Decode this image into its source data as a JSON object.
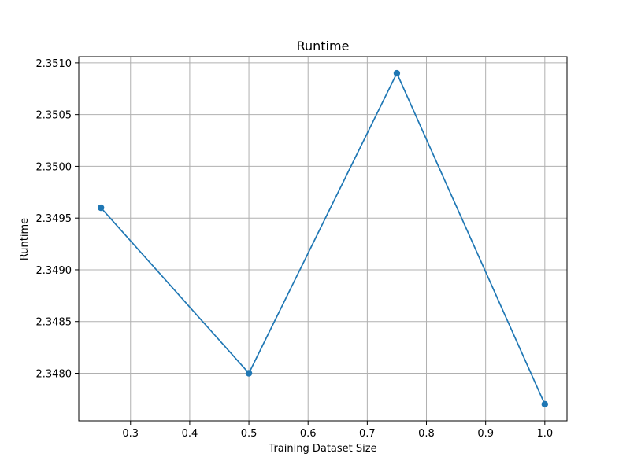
{
  "chart_data": {
    "type": "line",
    "title": "Runtime",
    "xlabel": "Training Dataset Size",
    "ylabel": "Runtime",
    "xlim": [
      0.2125,
      1.0375
    ],
    "ylim": [
      2.34754,
      2.35106
    ],
    "xticks": [
      0.3,
      0.4,
      0.5,
      0.6,
      0.7,
      0.8,
      0.9,
      1.0
    ],
    "xtick_labels": [
      "0.3",
      "0.4",
      "0.5",
      "0.6",
      "0.7",
      "0.8",
      "0.9",
      "1.0"
    ],
    "yticks": [
      2.348,
      2.3485,
      2.349,
      2.3495,
      2.35,
      2.3505,
      2.351
    ],
    "ytick_labels": [
      "2.3480",
      "2.3485",
      "2.3490",
      "2.3495",
      "2.3500",
      "2.3505",
      "2.3510"
    ],
    "grid": true,
    "series": [
      {
        "color": "#1f77b4",
        "marker": "circle",
        "x": [
          0.25,
          0.5,
          0.75,
          1.0
        ],
        "y": [
          2.3496,
          2.348,
          2.3509,
          2.3477
        ]
      }
    ]
  }
}
